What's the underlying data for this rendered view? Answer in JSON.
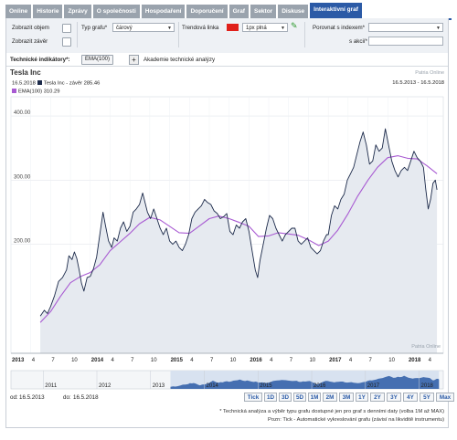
{
  "tabs": [
    "Online",
    "Historie",
    "Zprávy",
    "O společnosti",
    "Hospodaření",
    "Doporučení",
    "Graf",
    "Sektor",
    "Diskuse",
    "Interaktivní graf"
  ],
  "active_tab": "Interaktivní graf",
  "options": {
    "show_volume_label": "Zobrazit objem",
    "show_close_label": "Zobrazit závěr",
    "chart_type_label": "Typ grafu*",
    "chart_type_value": "čárový",
    "trend_line_label": "Trendová linka",
    "trend_line_value": "1px plná",
    "compare_index_label": "Porovnat s indexem*",
    "compare_stock_label": "s akcií*",
    "compare_index_value": "",
    "compare_stock_value": ""
  },
  "indicators": {
    "label": "Technické indikátory*:",
    "chip": "EMA(100)",
    "add": "+",
    "academy": "Akademie technické analýzy"
  },
  "chart_header": {
    "title": "Tesla Inc",
    "watermark": "Patria Online",
    "date": "16.5.2018",
    "series_close": "Tesla Inc - závěr 285.46",
    "series_ema": "EMA(100) 310.29",
    "range": "16.5.2013 - 16.5.2018"
  },
  "chart_data": {
    "type": "line",
    "title": "Tesla Inc",
    "xlabel": "",
    "ylabel": "",
    "x_ticks": [
      "2013",
      "4",
      "7",
      "10",
      "2014",
      "4",
      "7",
      "10",
      "2015",
      "4",
      "7",
      "10",
      "2016",
      "4",
      "7",
      "10",
      "2017",
      "4",
      "7",
      "10",
      "2018",
      "4"
    ],
    "y_ticks": [
      200.0,
      300.0,
      400.0
    ],
    "y_tick_labels": [
      "200.00",
      "300.00",
      "400.00"
    ],
    "ylim": [
      30,
      430
    ],
    "grid": true,
    "series": [
      {
        "name": "Tesla Inc - závěr",
        "color": "#1c2a4a",
        "points": [
          [
            2013.37,
            88
          ],
          [
            2013.42,
            97
          ],
          [
            2013.46,
            92
          ],
          [
            2013.5,
            103
          ],
          [
            2013.55,
            120
          ],
          [
            2013.6,
            142
          ],
          [
            2013.65,
            148
          ],
          [
            2013.7,
            160
          ],
          [
            2013.73,
            182
          ],
          [
            2013.77,
            176
          ],
          [
            2013.8,
            188
          ],
          [
            2013.83,
            178
          ],
          [
            2013.86,
            160
          ],
          [
            2013.89,
            139
          ],
          [
            2013.92,
            127
          ],
          [
            2013.96,
            148
          ],
          [
            2014.0,
            150
          ],
          [
            2014.04,
            162
          ],
          [
            2014.08,
            180
          ],
          [
            2014.12,
            215
          ],
          [
            2014.16,
            250
          ],
          [
            2014.19,
            230
          ],
          [
            2014.23,
            205
          ],
          [
            2014.27,
            195
          ],
          [
            2014.3,
            210
          ],
          [
            2014.34,
            205
          ],
          [
            2014.38,
            225
          ],
          [
            2014.42,
            235
          ],
          [
            2014.46,
            220
          ],
          [
            2014.5,
            228
          ],
          [
            2014.54,
            250
          ],
          [
            2014.58,
            255
          ],
          [
            2014.62,
            262
          ],
          [
            2014.66,
            280
          ],
          [
            2014.69,
            265
          ],
          [
            2014.72,
            250
          ],
          [
            2014.76,
            240
          ],
          [
            2014.8,
            255
          ],
          [
            2014.84,
            240
          ],
          [
            2014.88,
            225
          ],
          [
            2014.92,
            215
          ],
          [
            2014.96,
            225
          ],
          [
            2015.0,
            205
          ],
          [
            2015.04,
            200
          ],
          [
            2015.08,
            205
          ],
          [
            2015.12,
            195
          ],
          [
            2015.16,
            190
          ],
          [
            2015.2,
            200
          ],
          [
            2015.24,
            215
          ],
          [
            2015.28,
            240
          ],
          [
            2015.32,
            250
          ],
          [
            2015.36,
            255
          ],
          [
            2015.4,
            260
          ],
          [
            2015.44,
            270
          ],
          [
            2015.48,
            265
          ],
          [
            2015.52,
            262
          ],
          [
            2015.56,
            252
          ],
          [
            2015.6,
            248
          ],
          [
            2015.64,
            240
          ],
          [
            2015.68,
            243
          ],
          [
            2015.72,
            248
          ],
          [
            2015.76,
            220
          ],
          [
            2015.8,
            215
          ],
          [
            2015.84,
            230
          ],
          [
            2015.88,
            225
          ],
          [
            2015.92,
            235
          ],
          [
            2015.96,
            240
          ],
          [
            2016.0,
            220
          ],
          [
            2016.04,
            190
          ],
          [
            2016.08,
            160
          ],
          [
            2016.11,
            148
          ],
          [
            2016.14,
            175
          ],
          [
            2016.18,
            200
          ],
          [
            2016.22,
            225
          ],
          [
            2016.26,
            245
          ],
          [
            2016.3,
            240
          ],
          [
            2016.34,
            225
          ],
          [
            2016.38,
            215
          ],
          [
            2016.42,
            205
          ],
          [
            2016.46,
            215
          ],
          [
            2016.5,
            220
          ],
          [
            2016.54,
            225
          ],
          [
            2016.58,
            225
          ],
          [
            2016.62,
            205
          ],
          [
            2016.66,
            200
          ],
          [
            2016.7,
            205
          ],
          [
            2016.74,
            210
          ],
          [
            2016.78,
            195
          ],
          [
            2016.82,
            190
          ],
          [
            2016.86,
            185
          ],
          [
            2016.9,
            190
          ],
          [
            2016.94,
            205
          ],
          [
            2016.98,
            215
          ],
          [
            2017.0,
            215
          ],
          [
            2017.04,
            245
          ],
          [
            2017.08,
            260
          ],
          [
            2017.12,
            255
          ],
          [
            2017.16,
            270
          ],
          [
            2017.2,
            278
          ],
          [
            2017.24,
            300
          ],
          [
            2017.28,
            310
          ],
          [
            2017.32,
            320
          ],
          [
            2017.36,
            340
          ],
          [
            2017.4,
            360
          ],
          [
            2017.44,
            375
          ],
          [
            2017.48,
            355
          ],
          [
            2017.52,
            325
          ],
          [
            2017.56,
            330
          ],
          [
            2017.6,
            355
          ],
          [
            2017.64,
            345
          ],
          [
            2017.68,
            350
          ],
          [
            2017.72,
            380
          ],
          [
            2017.76,
            355
          ],
          [
            2017.8,
            330
          ],
          [
            2017.84,
            315
          ],
          [
            2017.88,
            305
          ],
          [
            2017.92,
            315
          ],
          [
            2017.96,
            320
          ],
          [
            2018.0,
            315
          ],
          [
            2018.04,
            330
          ],
          [
            2018.08,
            345
          ],
          [
            2018.12,
            335
          ],
          [
            2018.16,
            330
          ],
          [
            2018.2,
            320
          ],
          [
            2018.23,
            285
          ],
          [
            2018.26,
            255
          ],
          [
            2018.29,
            270
          ],
          [
            2018.32,
            295
          ],
          [
            2018.35,
            300
          ],
          [
            2018.37,
            285
          ]
        ]
      },
      {
        "name": "EMA(100)",
        "color": "#a85ad2",
        "points": [
          [
            2013.37,
            78
          ],
          [
            2013.5,
            95
          ],
          [
            2013.62,
            118
          ],
          [
            2013.75,
            140
          ],
          [
            2013.88,
            150
          ],
          [
            2014.0,
            156
          ],
          [
            2014.12,
            168
          ],
          [
            2014.25,
            190
          ],
          [
            2014.37,
            203
          ],
          [
            2014.5,
            217
          ],
          [
            2014.62,
            232
          ],
          [
            2014.75,
            242
          ],
          [
            2014.88,
            238
          ],
          [
            2015.0,
            228
          ],
          [
            2015.12,
            218
          ],
          [
            2015.25,
            217
          ],
          [
            2015.37,
            228
          ],
          [
            2015.5,
            240
          ],
          [
            2015.62,
            244
          ],
          [
            2015.75,
            240
          ],
          [
            2015.88,
            234
          ],
          [
            2016.0,
            228
          ],
          [
            2016.12,
            212
          ],
          [
            2016.25,
            213
          ],
          [
            2016.37,
            218
          ],
          [
            2016.5,
            216
          ],
          [
            2016.62,
            214
          ],
          [
            2016.75,
            207
          ],
          [
            2016.88,
            198
          ],
          [
            2017.0,
            205
          ],
          [
            2017.12,
            222
          ],
          [
            2017.25,
            248
          ],
          [
            2017.37,
            275
          ],
          [
            2017.5,
            300
          ],
          [
            2017.62,
            320
          ],
          [
            2017.75,
            335
          ],
          [
            2017.88,
            338
          ],
          [
            2018.0,
            334
          ],
          [
            2018.12,
            333
          ],
          [
            2018.25,
            322
          ],
          [
            2018.37,
            310
          ]
        ]
      }
    ],
    "nav_labels": [
      "2011",
      "2012",
      "2013",
      "2014",
      "2015",
      "2016",
      "2017",
      "2018"
    ]
  },
  "date_range": {
    "from_label": "od:",
    "from_value": "16.5.2013",
    "to_label": "do:",
    "to_value": "16.5.2018",
    "buttons": [
      "Tick",
      "1D",
      "3D",
      "5D",
      "1M",
      "2M",
      "3M",
      "1Y",
      "2Y",
      "3Y",
      "4Y",
      "5Y",
      "Max"
    ]
  },
  "footnotes": {
    "note1": "* Technická analýza a výběr typu grafu dostupné jen pro graf s denními daty (volba 1M až MAX)",
    "note2": "Pozn: Tick - Automatické vykreslování grafu (závisí na likviditě instrumentu)"
  },
  "colors": {
    "tab_bg": "#9aa3ad",
    "tab_active": "#2b5aa6",
    "price_line": "#1c2a4a",
    "ema_line": "#a85ad2",
    "area_fill": "#e6eaf0",
    "trend_swatch": "#e0201a"
  }
}
